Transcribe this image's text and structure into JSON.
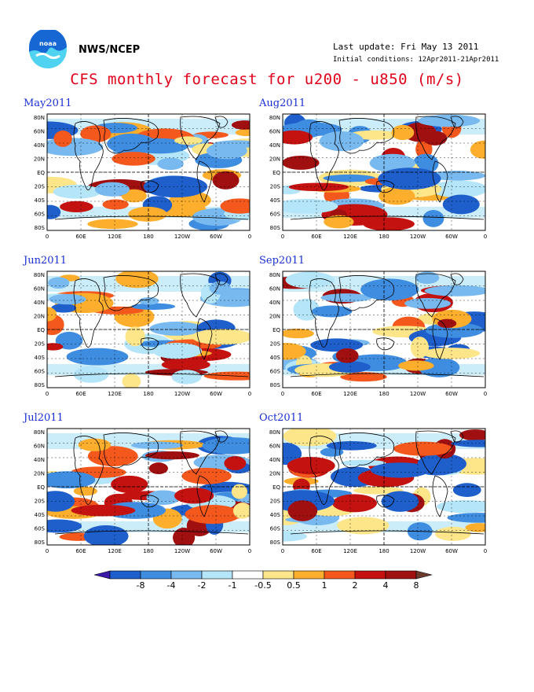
{
  "header": {
    "agency": "NWS/NCEP",
    "last_update": "Last update: Fri May 13 2011",
    "initial_conditions": "Initial conditions: 12Apr2011-21Apr2011",
    "title": "CFS monthly forecast for u200 - u850 (m/s)"
  },
  "map_axes": {
    "lat_labels": [
      "80N",
      "60N",
      "40N",
      "20N",
      "EQ",
      "20S",
      "40S",
      "60S",
      "80S"
    ],
    "lon_labels": [
      "0",
      "60E",
      "120E",
      "180",
      "120W",
      "60W",
      "0"
    ]
  },
  "panels": [
    {
      "month": "May2011"
    },
    {
      "month": "Aug2011"
    },
    {
      "month": "Jun2011"
    },
    {
      "month": "Sep2011"
    },
    {
      "month": "Jul2011"
    },
    {
      "month": "Oct2011"
    }
  ],
  "colorbar": {
    "labels": [
      "-8",
      "-4",
      "-2",
      "-1",
      "-0.5",
      "0.5",
      "1",
      "2",
      "4",
      "8"
    ],
    "colors": [
      "#3a18a8",
      "#1e5fcc",
      "#3f8de0",
      "#78b9ef",
      "#b5e5f8",
      "#ffffff",
      "#fde58a",
      "#fcae2c",
      "#f4581c",
      "#c41210",
      "#a01010",
      "#6b3b30"
    ]
  },
  "colors": {
    "title": "#e0001a",
    "panel_title": "#1a2fd6",
    "logo_blue": "#1666d4",
    "logo_cyan": "#4fd3f0"
  }
}
